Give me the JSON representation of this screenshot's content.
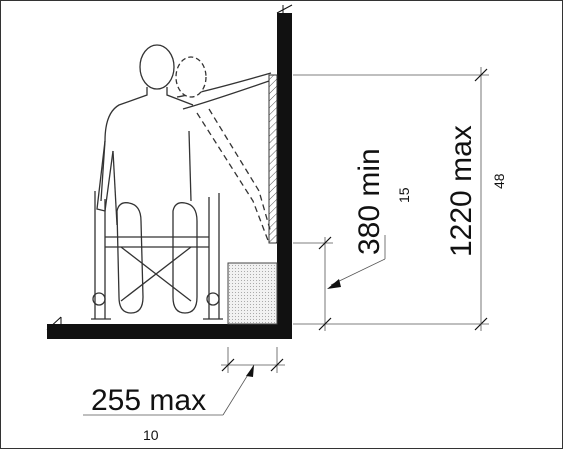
{
  "dimensions": {
    "reach_max": {
      "mm": "1220 max",
      "inches": "48"
    },
    "obstruction_depth_max": {
      "mm": "255 max",
      "inches": "10"
    },
    "reach_min": {
      "mm": "380 min",
      "inches": "15"
    }
  },
  "colors": {
    "line": "#111111",
    "hatch_fill": "#e8e8e8",
    "figure_stroke": "#333333"
  }
}
